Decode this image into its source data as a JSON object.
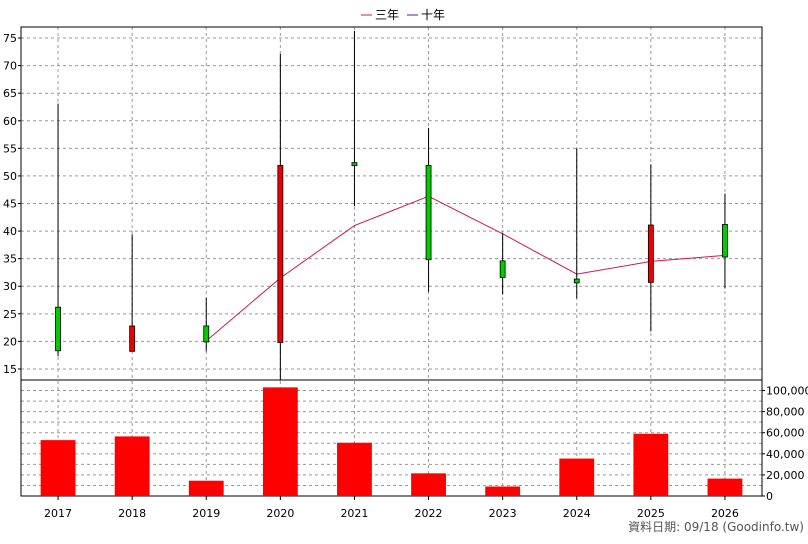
{
  "chart_data": {
    "type": "candlestick",
    "legend": [
      {
        "name": "三年",
        "color": "#d4145a"
      },
      {
        "name": "十年",
        "color": "#6a0dad"
      }
    ],
    "categories": [
      "2017",
      "2018",
      "2019",
      "2020",
      "2021",
      "2022",
      "2023",
      "2024",
      "2025",
      "2026"
    ],
    "price_axis": {
      "ylim": [
        13,
        77
      ],
      "ticks": [
        15,
        20,
        25,
        30,
        35,
        40,
        45,
        50,
        55,
        60,
        65,
        70,
        75
      ]
    },
    "candles": [
      {
        "year": "2017",
        "open": 18.3,
        "close": 26.2,
        "high": 63.1,
        "low": 17.3
      },
      {
        "year": "2018",
        "open": 22.8,
        "close": 18.2,
        "high": 39.4,
        "low": 18.2
      },
      {
        "year": "2019",
        "open": 19.9,
        "close": 22.8,
        "high": 27.9,
        "low": 18.2
      },
      {
        "year": "2020",
        "open": 51.9,
        "close": 19.8,
        "high": 72.1,
        "low": 13.0
      },
      {
        "year": "2021",
        "open": 52.0,
        "close": 52.4,
        "high": 76.3,
        "low": 44.5
      },
      {
        "year": "2022",
        "open": 34.8,
        "close": 51.9,
        "high": 58.7,
        "low": 29.0
      },
      {
        "year": "2023",
        "open": 31.6,
        "close": 34.6,
        "high": 39.6,
        "low": 28.5
      },
      {
        "year": "2024",
        "open": 30.6,
        "close": 31.3,
        "high": 55.0,
        "low": 27.8
      },
      {
        "year": "2025",
        "open": 41.1,
        "close": 30.7,
        "high": 52.1,
        "low": 21.8
      },
      {
        "year": "2026",
        "open": 35.3,
        "close": 41.2,
        "high": 46.8,
        "low": 29.6
      }
    ],
    "series": [
      {
        "name": "三年",
        "color": "#d4145a",
        "points": [
          [
            "2019",
            20.1
          ],
          [
            "2020",
            31.5
          ],
          [
            "2021",
            41.0
          ],
          [
            "2022",
            46.3
          ],
          [
            "2023",
            39.5
          ],
          [
            "2024",
            32.2
          ],
          [
            "2025",
            34.5
          ],
          [
            "2026",
            35.6
          ]
        ]
      }
    ],
    "volume_axis": {
      "ylim": [
        0,
        110000
      ],
      "ticks": [
        0,
        20000,
        40000,
        60000,
        80000,
        100000
      ],
      "tick_labels": [
        "0",
        "20,000",
        "40,000",
        "60,000",
        "80,000",
        "100,000"
      ]
    },
    "volume": [
      53000,
      56500,
      14500,
      103000,
      50500,
      21500,
      9000,
      35500,
      59000,
      16500
    ],
    "colors": {
      "up": "#00cc00",
      "down": "#ee0000",
      "volume": "#ff0000",
      "grid": "#999999"
    }
  },
  "footer": {
    "source": "資料日期: 09/18  (Goodinfo.tw)"
  }
}
